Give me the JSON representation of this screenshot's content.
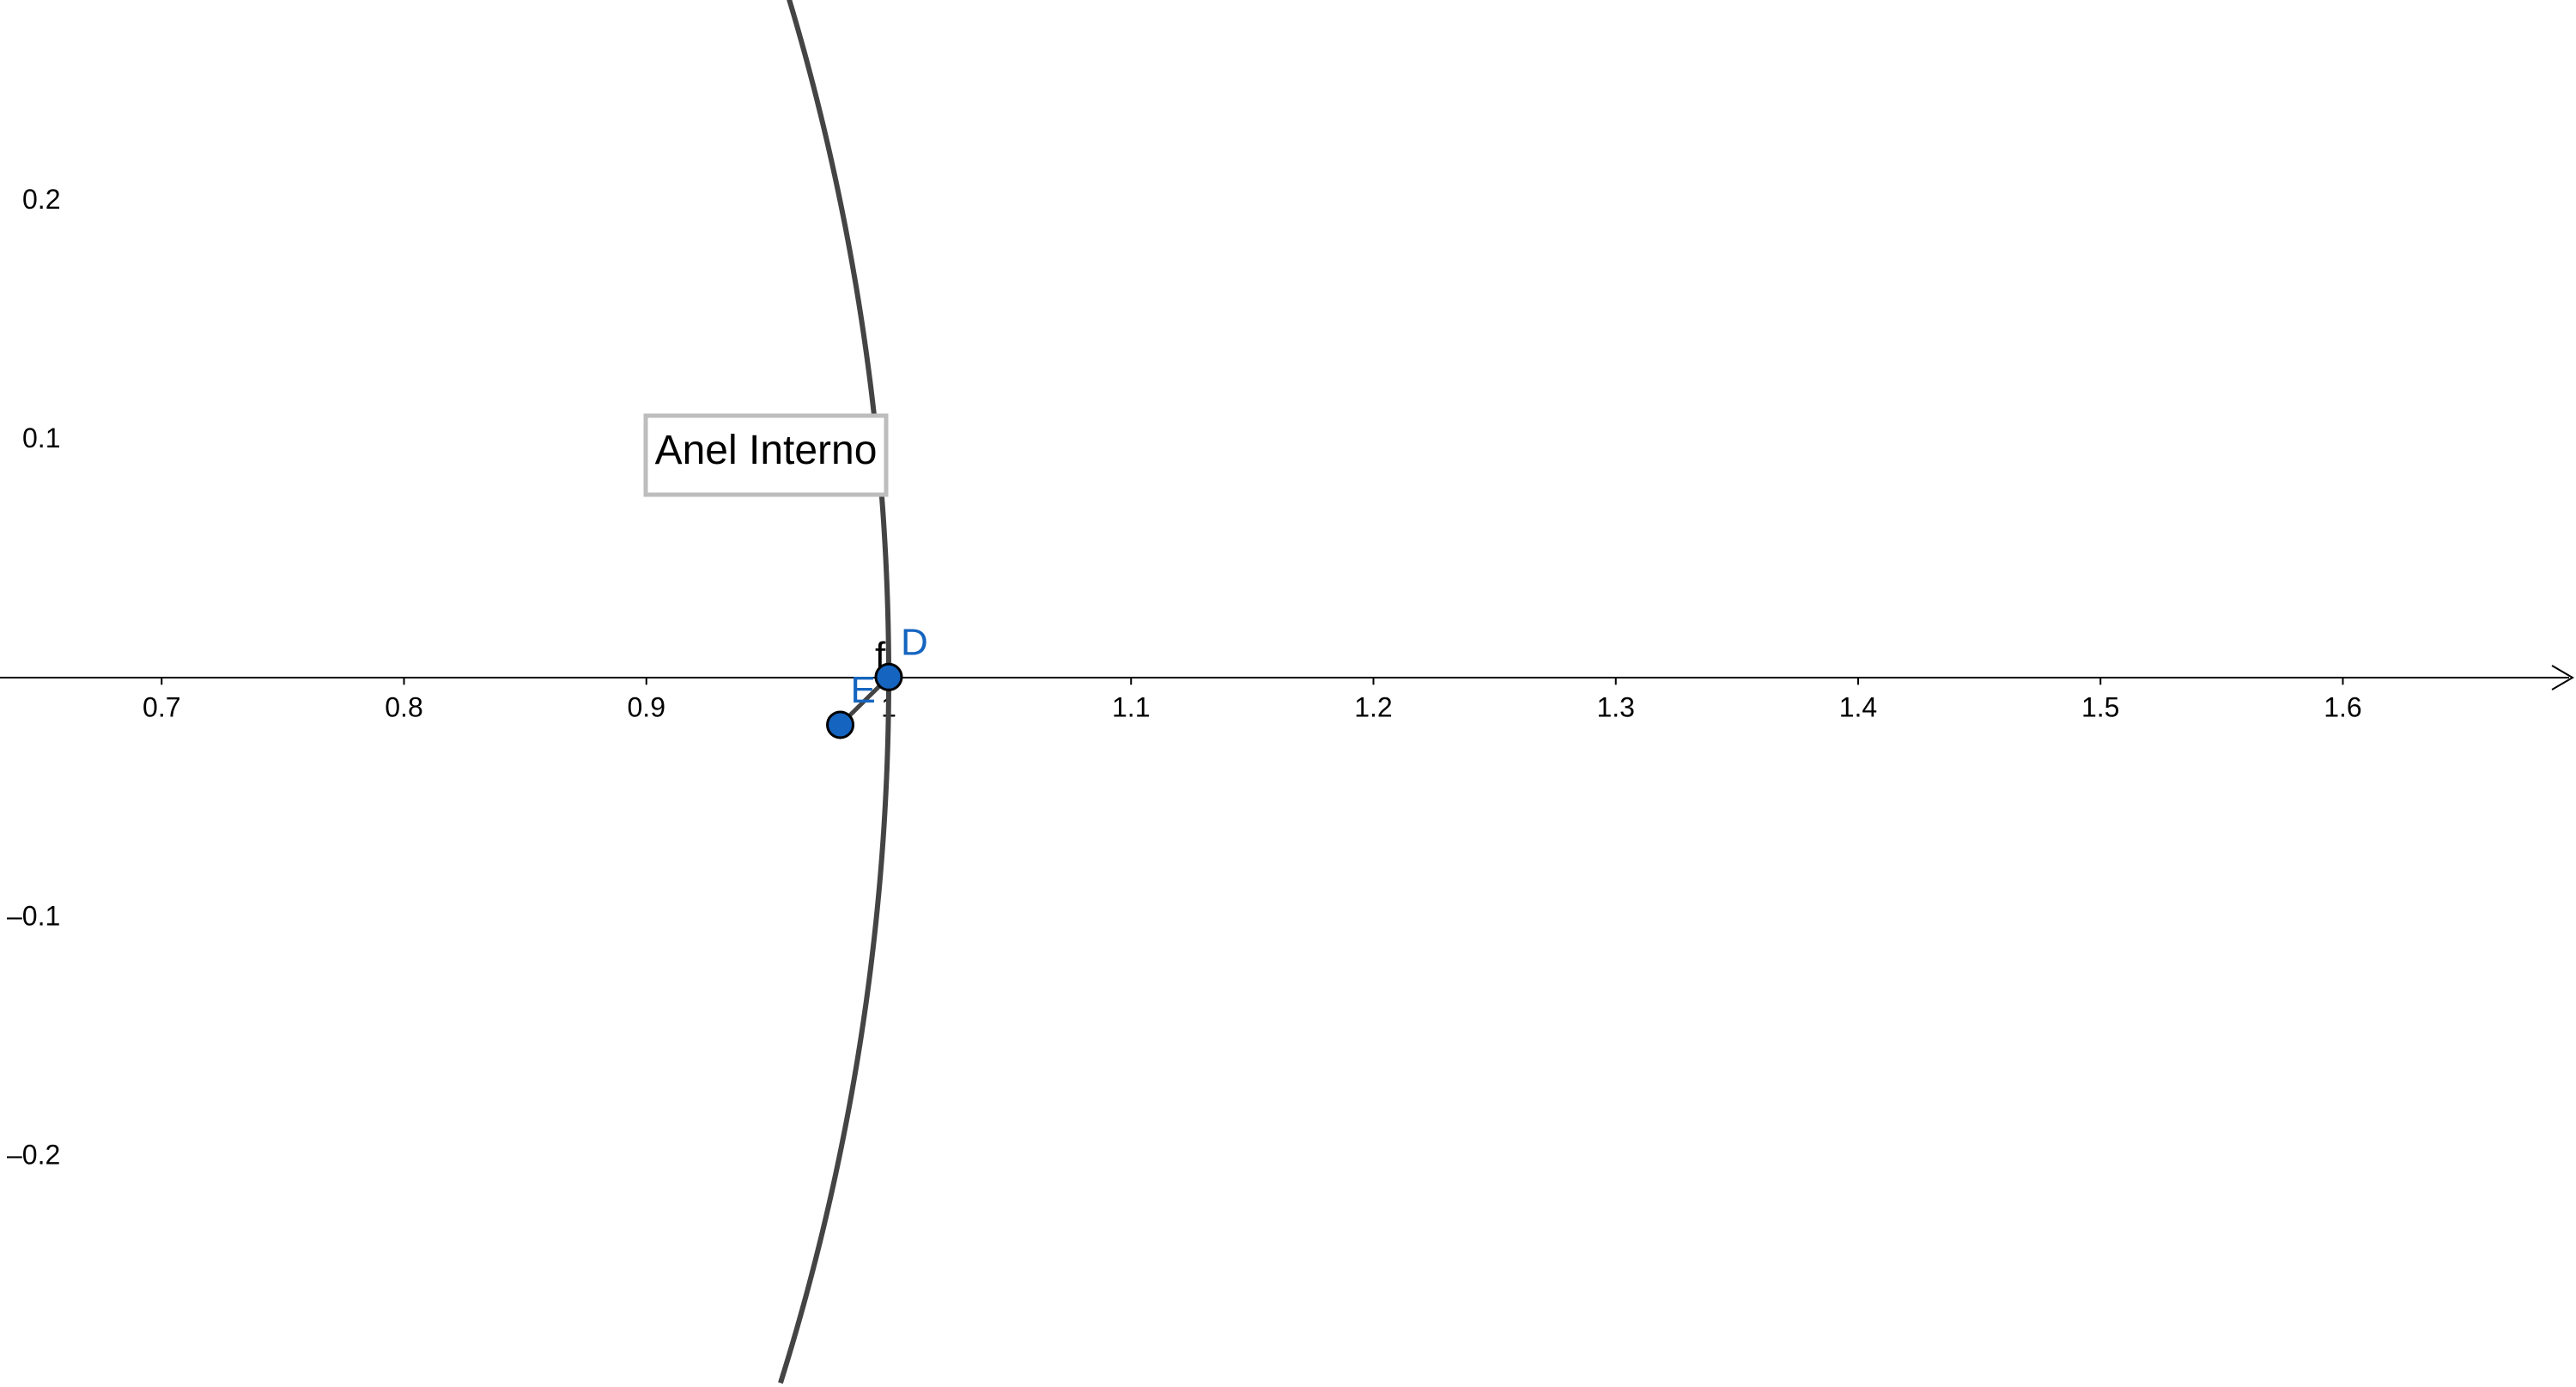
{
  "axes": {
    "x_range": [
      0.6333,
      1.6962
    ],
    "y_range": [
      -0.2972,
      0.2834
    ],
    "x_ticks": [
      {
        "value": 0.7,
        "label": "0.7"
      },
      {
        "value": 0.8,
        "label": "0.8"
      },
      {
        "value": 0.9,
        "label": "0.9"
      },
      {
        "value": 1.0,
        "label": "1"
      },
      {
        "value": 1.1,
        "label": "1.1"
      },
      {
        "value": 1.2,
        "label": "1.2"
      },
      {
        "value": 1.3,
        "label": "1.3"
      },
      {
        "value": 1.4,
        "label": "1.4"
      },
      {
        "value": 1.5,
        "label": "1.5"
      },
      {
        "value": 1.6,
        "label": "1.6"
      }
    ],
    "y_ticks": [
      {
        "value": 0.2,
        "label": "0.2"
      },
      {
        "value": 0.1,
        "label": "0.1"
      },
      {
        "value": -0.1,
        "label": "–0.1"
      },
      {
        "value": -0.2,
        "label": "–0.2"
      }
    ],
    "axis_color": "#000000",
    "x_arrow": true,
    "y_axis_visible": false
  },
  "circle": {
    "center": [
      0,
      0
    ],
    "radius": 1,
    "color": "#444444"
  },
  "points": [
    {
      "name": "D",
      "label": "D",
      "x": 1.0,
      "y": 0.0,
      "color": "#1565c0"
    },
    {
      "name": "E",
      "label": "E",
      "x": 0.98,
      "y": -0.02,
      "color": "#1565c0"
    }
  ],
  "segment": {
    "label": "f",
    "from": "E",
    "to": "D",
    "color": "#444444"
  },
  "textbox": {
    "text": "Anel Interno",
    "border_color": "#bdbdbd"
  },
  "colors": {
    "background": "#ffffff",
    "point_fill": "#1565c0",
    "point_label": "#1565c0"
  }
}
